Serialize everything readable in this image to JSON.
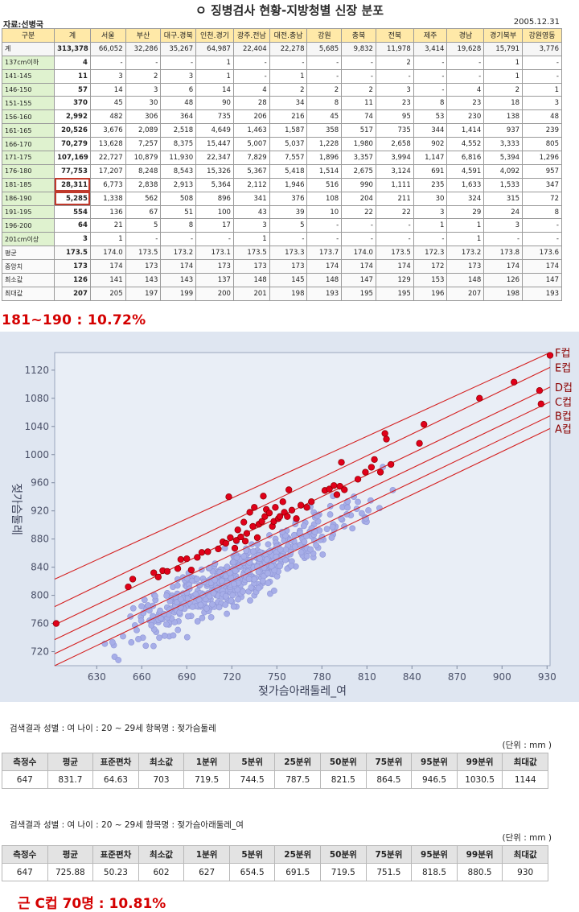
{
  "top_table": {
    "title": "ㅇ 징병검사 현황-지방청별 신장 분포",
    "source": "자료:선병국",
    "date": "2005.12.31",
    "highlight_row_labels": [
      "181-185",
      "186-190"
    ],
    "columns": [
      "구분",
      "계",
      "서울",
      "부산",
      "대구.경북",
      "인천.경기",
      "광주.전남",
      "대전.충남",
      "강원",
      "충북",
      "전북",
      "제주",
      "경남",
      "경기북부",
      "강원영동"
    ],
    "rows": [
      {
        "label": "계",
        "cells": [
          "313,378",
          "66,052",
          "32,286",
          "35,267",
          "64,987",
          "22,404",
          "22,278",
          "5,685",
          "9,832",
          "11,978",
          "3,414",
          "19,628",
          "15,791",
          "3,776"
        ]
      },
      {
        "label": "137cm이하",
        "cells": [
          "4",
          "-",
          "-",
          "-",
          "1",
          "-",
          "-",
          "-",
          "-",
          "2",
          "-",
          "-",
          "1",
          "-"
        ]
      },
      {
        "label": "141-145",
        "cells": [
          "11",
          "3",
          "2",
          "3",
          "1",
          "-",
          "1",
          "-",
          "-",
          "-",
          "-",
          "-",
          "1",
          "-"
        ]
      },
      {
        "label": "146-150",
        "cells": [
          "57",
          "14",
          "3",
          "6",
          "14",
          "4",
          "2",
          "2",
          "2",
          "3",
          "-",
          "4",
          "2",
          "1"
        ]
      },
      {
        "label": "151-155",
        "cells": [
          "370",
          "45",
          "30",
          "48",
          "90",
          "28",
          "34",
          "8",
          "11",
          "23",
          "8",
          "23",
          "18",
          "3"
        ]
      },
      {
        "label": "156-160",
        "cells": [
          "2,992",
          "482",
          "306",
          "364",
          "735",
          "206",
          "216",
          "45",
          "74",
          "95",
          "53",
          "230",
          "138",
          "48"
        ]
      },
      {
        "label": "161-165",
        "cells": [
          "20,526",
          "3,676",
          "2,089",
          "2,518",
          "4,649",
          "1,463",
          "1,587",
          "358",
          "517",
          "735",
          "344",
          "1,414",
          "937",
          "239"
        ]
      },
      {
        "label": "166-170",
        "cells": [
          "70,279",
          "13,628",
          "7,257",
          "8,375",
          "15,447",
          "5,007",
          "5,037",
          "1,228",
          "1,980",
          "2,658",
          "902",
          "4,552",
          "3,333",
          "805"
        ]
      },
      {
        "label": "171-175",
        "cells": [
          "107,169",
          "22,727",
          "10,879",
          "11,930",
          "22,347",
          "7,829",
          "7,557",
          "1,896",
          "3,357",
          "3,994",
          "1,147",
          "6,816",
          "5,394",
          "1,296"
        ]
      },
      {
        "label": "176-180",
        "cells": [
          "77,753",
          "17,207",
          "8,248",
          "8,543",
          "15,326",
          "5,367",
          "5,418",
          "1,514",
          "2,675",
          "3,124",
          "691",
          "4,591",
          "4,092",
          "957"
        ]
      },
      {
        "label": "181-185",
        "cells": [
          "28,311",
          "6,773",
          "2,838",
          "2,913",
          "5,364",
          "2,112",
          "1,946",
          "516",
          "990",
          "1,111",
          "235",
          "1,633",
          "1,533",
          "347"
        ]
      },
      {
        "label": "186-190",
        "cells": [
          "5,285",
          "1,338",
          "562",
          "508",
          "896",
          "341",
          "376",
          "108",
          "204",
          "211",
          "30",
          "324",
          "315",
          "72"
        ]
      },
      {
        "label": "191-195",
        "cells": [
          "554",
          "136",
          "67",
          "51",
          "100",
          "43",
          "39",
          "10",
          "22",
          "22",
          "3",
          "29",
          "24",
          "8"
        ]
      },
      {
        "label": "196-200",
        "cells": [
          "64",
          "21",
          "5",
          "8",
          "17",
          "3",
          "5",
          "-",
          "-",
          "-",
          "1",
          "1",
          "3",
          "-"
        ]
      },
      {
        "label": "201cm이상",
        "cells": [
          "3",
          "1",
          "-",
          "-",
          "-",
          "1",
          "-",
          "-",
          "-",
          "-",
          "-",
          "1",
          "-",
          "-"
        ]
      },
      {
        "label": "평균",
        "cells": [
          "173.5",
          "174.0",
          "173.5",
          "173.2",
          "173.1",
          "173.5",
          "173.3",
          "173.7",
          "174.0",
          "173.5",
          "172.3",
          "173.2",
          "173.8",
          "173.6"
        ]
      },
      {
        "label": "중앙치",
        "cells": [
          "173",
          "174",
          "173",
          "174",
          "173",
          "173",
          "173",
          "174",
          "174",
          "174",
          "172",
          "173",
          "174",
          "174"
        ]
      },
      {
        "label": "최소값",
        "cells": [
          "126",
          "141",
          "143",
          "143",
          "137",
          "148",
          "145",
          "148",
          "147",
          "129",
          "153",
          "148",
          "126",
          "147"
        ]
      },
      {
        "label": "최대값",
        "cells": [
          "207",
          "205",
          "197",
          "199",
          "200",
          "201",
          "198",
          "193",
          "195",
          "195",
          "196",
          "207",
          "198",
          "193"
        ]
      }
    ]
  },
  "note_top": "181~190 : 10.72%",
  "chart_data": {
    "type": "scatter",
    "title": "",
    "xlabel": "젖가슴아래둘레_여",
    "ylabel": "젖가슴둘레",
    "xlim": [
      602,
      932
    ],
    "ylim": [
      700,
      1145
    ],
    "xticks": [
      630,
      660,
      690,
      720,
      750,
      780,
      810,
      840,
      870,
      900,
      930
    ],
    "yticks": [
      720,
      760,
      800,
      840,
      880,
      920,
      960,
      1000,
      1040,
      1080,
      1120
    ],
    "grid": false,
    "background_color": "#dfe6f1",
    "plot_color": "#e9eef6",
    "point_color": "#a7aee8",
    "highlight_color": "#e0001a",
    "line_color": "#d42020",
    "cup_lines": [
      {
        "name": "A컵",
        "points": [
          [
            602,
            700
          ],
          [
            932,
            1037
          ]
        ]
      },
      {
        "name": "B컵",
        "points": [
          [
            602,
            717
          ],
          [
            932,
            1055
          ]
        ]
      },
      {
        "name": "C컵",
        "points": [
          [
            602,
            737
          ],
          [
            932,
            1075
          ]
        ]
      },
      {
        "name": "D컵",
        "points": [
          [
            602,
            758
          ],
          [
            932,
            1096
          ]
        ]
      },
      {
        "name": "E컵",
        "points": [
          [
            602,
            784
          ],
          [
            932,
            1124
          ]
        ]
      },
      {
        "name": "F컵",
        "points": [
          [
            602,
            823
          ],
          [
            932,
            1145
          ]
        ]
      }
    ],
    "highlight_points": [
      [
        603,
        760
      ],
      [
        651,
        812
      ],
      [
        654,
        823
      ],
      [
        668,
        832
      ],
      [
        671,
        826
      ],
      [
        674,
        835
      ],
      [
        677,
        834
      ],
      [
        684,
        838
      ],
      [
        686,
        851
      ],
      [
        690,
        852
      ],
      [
        693,
        836
      ],
      [
        697,
        854
      ],
      [
        700,
        861
      ],
      [
        704,
        862
      ],
      [
        711,
        866
      ],
      [
        714,
        876
      ],
      [
        716,
        874
      ],
      [
        718,
        940
      ],
      [
        719,
        882
      ],
      [
        722,
        867
      ],
      [
        723,
        878
      ],
      [
        724,
        893
      ],
      [
        726,
        883
      ],
      [
        728,
        904
      ],
      [
        729,
        877
      ],
      [
        730,
        888
      ],
      [
        732,
        918
      ],
      [
        734,
        898
      ],
      [
        735,
        925
      ],
      [
        737,
        882
      ],
      [
        738,
        901
      ],
      [
        740,
        905
      ],
      [
        741,
        941
      ],
      [
        742,
        912
      ],
      [
        743,
        922
      ],
      [
        745,
        917
      ],
      [
        747,
        898
      ],
      [
        748,
        905
      ],
      [
        749,
        925
      ],
      [
        751,
        909
      ],
      [
        752,
        912
      ],
      [
        754,
        933
      ],
      [
        755,
        918
      ],
      [
        757,
        912
      ],
      [
        758,
        950
      ],
      [
        760,
        921
      ],
      [
        763,
        909
      ],
      [
        766,
        928
      ],
      [
        770,
        925
      ],
      [
        773,
        933
      ],
      [
        782,
        949
      ],
      [
        785,
        951
      ],
      [
        788,
        956
      ],
      [
        790,
        943
      ],
      [
        792,
        955
      ],
      [
        793,
        989
      ],
      [
        795,
        950
      ],
      [
        804,
        965
      ],
      [
        809,
        975
      ],
      [
        813,
        982
      ],
      [
        815,
        993
      ],
      [
        819,
        975
      ],
      [
        822,
        1030
      ],
      [
        823,
        1022
      ],
      [
        826,
        986
      ],
      [
        845,
        1016
      ],
      [
        848,
        1043
      ],
      [
        885,
        1080
      ],
      [
        908,
        1103
      ],
      [
        925,
        1091
      ],
      [
        926,
        1072
      ],
      [
        932,
        1141
      ]
    ]
  },
  "results": [
    {
      "condition": "검색결과  성별 : 여  나이 : 20 ~ 29세  항목명 : 젖가슴둘레",
      "unit": "(단위 : mm )",
      "headers": [
        "측정수",
        "평균",
        "표준편차",
        "최소값",
        "1분위",
        "5분위",
        "25분위",
        "50분위",
        "75분위",
        "95분위",
        "99분위",
        "최대값"
      ],
      "values": [
        "647",
        "831.7",
        "64.63",
        "703",
        "719.5",
        "744.5",
        "787.5",
        "821.5",
        "864.5",
        "946.5",
        "1030.5",
        "1144"
      ]
    },
    {
      "condition": "검색결과  성별 : 여  나이 : 20 ~ 29세  항목명 : 젖가슴아래둘레_여",
      "unit": "(단위 : mm )",
      "headers": [
        "측정수",
        "평균",
        "표준편차",
        "최소값",
        "1분위",
        "5분위",
        "25분위",
        "50분위",
        "75분위",
        "95분위",
        "99분위",
        "최대값"
      ],
      "values": [
        "647",
        "725.88",
        "50.23",
        "602",
        "627",
        "654.5",
        "691.5",
        "719.5",
        "751.5",
        "818.5",
        "880.5",
        "930"
      ]
    }
  ],
  "note_bottom": "근 C컵 70명 : 10.81%"
}
